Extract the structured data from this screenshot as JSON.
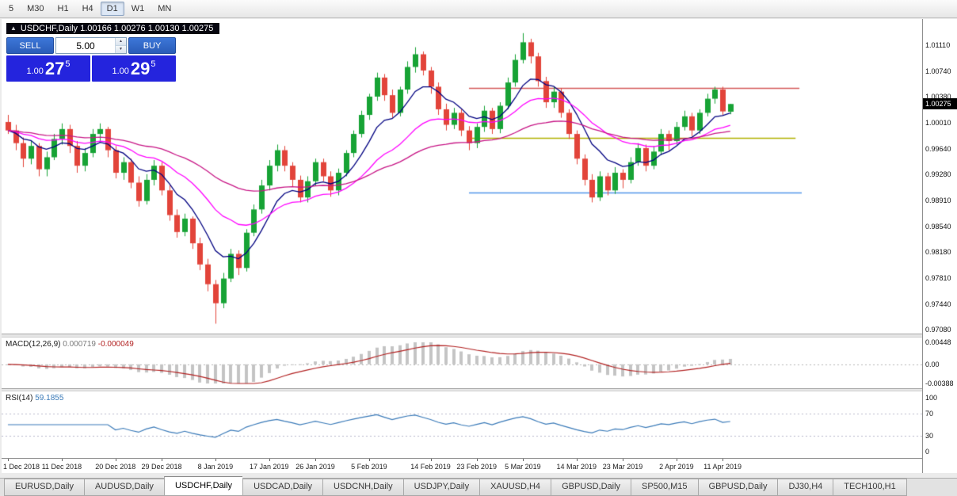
{
  "toolbar": {
    "timeframes": [
      "5",
      "M30",
      "H1",
      "H4",
      "D1",
      "W1",
      "MN"
    ],
    "active_timeframe": "D1"
  },
  "chart_header": {
    "collapse_icon": "▲",
    "title": "USDCHF,Daily 1.00166 1.00276 1.00130 1.00275"
  },
  "one_click_trading": {
    "sell_label": "SELL",
    "buy_label": "BUY",
    "volume_value": "5.00",
    "sell_price": {
      "prefix": "1.00",
      "big": "27",
      "sup": "5"
    },
    "buy_price": {
      "prefix": "1.00",
      "big": "29",
      "sup": "5"
    }
  },
  "price_axis": {
    "labels": [
      "1.01110",
      "1.00740",
      "1.00380",
      "1.00010",
      "0.99640",
      "0.99280",
      "0.98910",
      "0.98540",
      "0.98180",
      "0.97810",
      "0.97440",
      "0.97080"
    ],
    "current_price": "1.00275"
  },
  "indicators": {
    "macd": {
      "name": "MACD(12,26,9)",
      "value": "0.000719",
      "signal": "-0.000049",
      "params": {
        "fast": 12,
        "slow": 26,
        "signal_period": 9
      },
      "histogram_color": "#c4c4c4",
      "signal_color": "#b22222",
      "axis": [
        {
          "text": "0.00448",
          "v": 0.00448
        },
        {
          "text": "0.00",
          "v": 0
        },
        {
          "text": "-0.00388",
          "v": -0.00388
        }
      ]
    },
    "rsi": {
      "name": "RSI(14)",
      "value": "59.1855",
      "period": 14,
      "line_color": "#3a7ab8",
      "levels": [
        70,
        30
      ],
      "axis": [
        {
          "text": "100",
          "v": 100
        },
        {
          "text": "70",
          "v": 70
        },
        {
          "text": "30",
          "v": 30
        },
        {
          "text": "0",
          "v": 0
        }
      ]
    }
  },
  "chart_data": {
    "type": "candlestick",
    "symbol": "USDCHF",
    "timeframe": "Daily",
    "last_ohlc": {
      "open": "1.00166",
      "high": "1.00276",
      "low": "1.00130",
      "close": "1.00275"
    },
    "ylim": [
      0.9702,
      1.0148
    ],
    "up_color": "#17a335",
    "down_color": "#e2443a",
    "moving_averages": [
      {
        "period": 8,
        "color": "#000080"
      },
      {
        "period": 20,
        "color": "#ff00ff"
      },
      {
        "period": 45,
        "color": "#c71585"
      }
    ],
    "levels": [
      {
        "price": 1.005,
        "color": "#d45a5a",
        "from_i": 60,
        "to_i": 103
      },
      {
        "price": 0.9979,
        "color": "#b0b000",
        "from_i": 60,
        "to_i": 102.5
      },
      {
        "price": 0.9902,
        "color": "#4f94e8",
        "from_i": 60,
        "to_i": 103.3
      }
    ],
    "date_labels": [
      {
        "label": "1 Dec 2018",
        "i": 0
      },
      {
        "label": "11 Dec 2018",
        "i": 7
      },
      {
        "label": "20 Dec 2018",
        "i": 14
      },
      {
        "label": "29 Dec 2018",
        "i": 20
      },
      {
        "label": "8 Jan 2019",
        "i": 27
      },
      {
        "label": "17 Jan 2019",
        "i": 34
      },
      {
        "label": "26 Jan 2019",
        "i": 40
      },
      {
        "label": "5 Feb 2019",
        "i": 47
      },
      {
        "label": "14 Feb 2019",
        "i": 55
      },
      {
        "label": "23 Feb 2019",
        "i": 61
      },
      {
        "label": "5 Mar 2019",
        "i": 67
      },
      {
        "label": "14 Mar 2019",
        "i": 74
      },
      {
        "label": "23 Mar 2019",
        "i": 80
      },
      {
        "label": "2 Apr 2019",
        "i": 87
      },
      {
        "label": "11 Apr 2019",
        "i": 93
      }
    ],
    "candles": [
      [
        1.0002,
        1.0012,
        0.9985,
        0.999
      ],
      [
        0.999,
        0.9998,
        0.9962,
        0.9972
      ],
      [
        0.9972,
        0.998,
        0.9938,
        0.995
      ],
      [
        0.995,
        0.9975,
        0.9942,
        0.9968
      ],
      [
        0.9968,
        0.9972,
        0.9925,
        0.9935
      ],
      [
        0.9935,
        0.996,
        0.9925,
        0.9952
      ],
      [
        0.9952,
        0.9985,
        0.9948,
        0.9978
      ],
      [
        0.9978,
        1.0,
        0.997,
        0.9992
      ],
      [
        0.9992,
        0.9998,
        0.9958,
        0.9968
      ],
      [
        0.9968,
        0.9975,
        0.993,
        0.994
      ],
      [
        0.994,
        0.9965,
        0.9932,
        0.9958
      ],
      [
        0.9958,
        0.9992,
        0.9952,
        0.9985
      ],
      [
        0.9985,
        1.0,
        0.9975,
        0.9992
      ],
      [
        0.9992,
        0.9995,
        0.9952,
        0.9962
      ],
      [
        0.9962,
        0.9968,
        0.9922,
        0.993
      ],
      [
        0.993,
        0.9952,
        0.992,
        0.9945
      ],
      [
        0.9945,
        0.995,
        0.9908,
        0.9916
      ],
      [
        0.9916,
        0.9925,
        0.9882,
        0.989
      ],
      [
        0.989,
        0.9928,
        0.9885,
        0.992
      ],
      [
        0.992,
        0.9948,
        0.9912,
        0.994
      ],
      [
        0.994,
        0.9945,
        0.9898,
        0.9905
      ],
      [
        0.9905,
        0.9912,
        0.9862,
        0.987
      ],
      [
        0.987,
        0.9878,
        0.9838,
        0.9846
      ],
      [
        0.9846,
        0.9872,
        0.984,
        0.9865
      ],
      [
        0.9865,
        0.9868,
        0.9822,
        0.983
      ],
      [
        0.983,
        0.9838,
        0.9792,
        0.98
      ],
      [
        0.98,
        0.9808,
        0.9762,
        0.9772
      ],
      [
        0.9772,
        0.9778,
        0.9716,
        0.9745
      ],
      [
        0.9745,
        0.9788,
        0.9738,
        0.978
      ],
      [
        0.978,
        0.9822,
        0.9775,
        0.9815
      ],
      [
        0.9815,
        0.982,
        0.9785,
        0.9795
      ],
      [
        0.9795,
        0.985,
        0.979,
        0.9845
      ],
      [
        0.9845,
        0.9885,
        0.984,
        0.9878
      ],
      [
        0.9878,
        0.992,
        0.9872,
        0.9912
      ],
      [
        0.9912,
        0.9948,
        0.9905,
        0.994
      ],
      [
        0.994,
        0.997,
        0.9932,
        0.9962
      ],
      [
        0.9962,
        0.9968,
        0.9932,
        0.994
      ],
      [
        0.994,
        0.9945,
        0.991,
        0.992
      ],
      [
        0.992,
        0.9926,
        0.9888,
        0.9895
      ],
      [
        0.9895,
        0.9925,
        0.9888,
        0.9918
      ],
      [
        0.9918,
        0.995,
        0.9912,
        0.9945
      ],
      [
        0.9945,
        0.995,
        0.9918,
        0.9925
      ],
      [
        0.9925,
        0.9932,
        0.9896,
        0.9905
      ],
      [
        0.9905,
        0.9936,
        0.9898,
        0.993
      ],
      [
        0.993,
        0.9962,
        0.9925,
        0.9958
      ],
      [
        0.9958,
        0.999,
        0.9952,
        0.9985
      ],
      [
        0.9985,
        1.0018,
        0.998,
        1.0012
      ],
      [
        1.0012,
        1.0042,
        1.0005,
        1.0038
      ],
      [
        1.0038,
        1.0072,
        1.0032,
        1.0065
      ],
      [
        1.0065,
        1.007,
        1.0032,
        1.004
      ],
      [
        1.004,
        1.0048,
        1.0008,
        1.0015
      ],
      [
        1.0015,
        1.0052,
        1.001,
        1.0048
      ],
      [
        1.0048,
        1.0088,
        1.0042,
        1.008
      ],
      [
        1.008,
        1.0108,
        1.0072,
        1.0098
      ],
      [
        1.0098,
        1.0102,
        1.0068,
        1.0075
      ],
      [
        1.0075,
        1.008,
        1.0042,
        1.0052
      ],
      [
        1.0052,
        1.0058,
        1.0012,
        1.002
      ],
      [
        1.002,
        1.0028,
        0.999,
        0.9998
      ],
      [
        0.9998,
        1.0022,
        0.9992,
        1.0015
      ],
      [
        1.0015,
        1.002,
        0.9982,
        0.999
      ],
      [
        0.999,
        0.9996,
        0.9962,
        0.9972
      ],
      [
        0.9972,
        1.0,
        0.9965,
        0.9995
      ],
      [
        0.9995,
        1.0025,
        0.9988,
        1.0018
      ],
      [
        1.0018,
        1.0022,
        0.9985,
        0.9992
      ],
      [
        0.9992,
        1.003,
        0.9986,
        1.0025
      ],
      [
        1.0025,
        1.0065,
        1.002,
        1.0058
      ],
      [
        1.0058,
        1.0098,
        1.0052,
        1.009
      ],
      [
        1.009,
        1.0128,
        1.0085,
        1.0115
      ],
      [
        1.0115,
        1.012,
        1.0085,
        1.0095
      ],
      [
        1.0095,
        1.01,
        1.0052,
        1.006
      ],
      [
        1.006,
        1.0066,
        1.0022,
        1.003
      ],
      [
        1.003,
        1.0052,
        1.0022,
        1.0045
      ],
      [
        1.0045,
        1.005,
        1.0008,
        1.0015
      ],
      [
        1.0015,
        1.002,
        0.9978,
        0.9985
      ],
      [
        0.9985,
        0.999,
        0.9942,
        0.995
      ],
      [
        0.995,
        0.9956,
        0.9912,
        0.992
      ],
      [
        0.992,
        0.9928,
        0.9888,
        0.9895
      ],
      [
        0.9895,
        0.9932,
        0.989,
        0.9925
      ],
      [
        0.9925,
        0.993,
        0.9898,
        0.9905
      ],
      [
        0.9905,
        0.9938,
        0.99,
        0.993
      ],
      [
        0.993,
        0.9935,
        0.9908,
        0.992
      ],
      [
        0.992,
        0.9952,
        0.9915,
        0.9945
      ],
      [
        0.9945,
        0.9972,
        0.994,
        0.9965
      ],
      [
        0.9965,
        0.997,
        0.9932,
        0.994
      ],
      [
        0.994,
        0.9968,
        0.9935,
        0.996
      ],
      [
        0.996,
        0.9992,
        0.9955,
        0.9985
      ],
      [
        0.9985,
        0.999,
        0.9962,
        0.9975
      ],
      [
        0.9975,
        1.0002,
        0.997,
        0.9995
      ],
      [
        0.9995,
        1.0018,
        0.999,
        1.001
      ],
      [
        1.001,
        1.0015,
        0.9982,
        0.999
      ],
      [
        0.999,
        1.002,
        0.9985,
        1.0015
      ],
      [
        1.0015,
        1.0042,
        1.001,
        1.0035
      ],
      [
        1.0035,
        1.0052,
        1.0028,
        1.0048
      ],
      [
        1.0048,
        1.0052,
        1.0012,
        1.0017
      ],
      [
        1.00166,
        1.00276,
        1.0013,
        1.00275
      ]
    ]
  },
  "tabs": [
    {
      "label": "EURUSD,Daily",
      "active": false
    },
    {
      "label": "AUDUSD,Daily",
      "active": false
    },
    {
      "label": "USDCHF,Daily",
      "active": true
    },
    {
      "label": "USDCAD,Daily",
      "active": false
    },
    {
      "label": "USDCNH,Daily",
      "active": false
    },
    {
      "label": "USDJPY,Daily",
      "active": false
    },
    {
      "label": "XAUUSD,H4",
      "active": false
    },
    {
      "label": "GBPUSD,Daily",
      "active": false
    },
    {
      "label": "SP500,M15",
      "active": false
    },
    {
      "label": "GBPUSD,Daily",
      "active": false
    },
    {
      "label": "DJ30,H4",
      "active": false
    },
    {
      "label": "TECH100,H1",
      "active": false
    }
  ]
}
